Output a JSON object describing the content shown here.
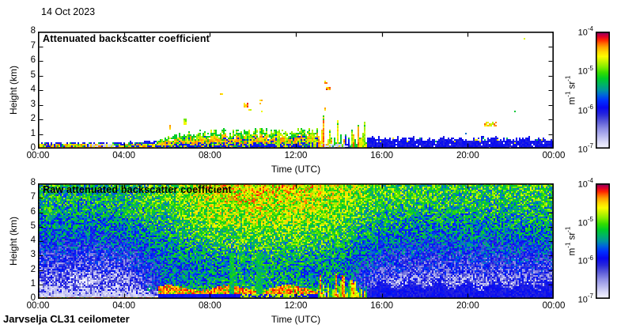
{
  "date_label": "14 Oct 2023",
  "footer": "Jarvselja CL31 ceilometer",
  "axes": {
    "x_label": "Time (UTC)",
    "y_label": "Height (km)",
    "x_ticks": [
      "00:00",
      "04:00",
      "08:00",
      "12:00",
      "16:00",
      "20:00",
      "00:00"
    ],
    "y_ticks": [
      "0",
      "1",
      "2",
      "3",
      "4",
      "5",
      "6",
      "7",
      "8"
    ]
  },
  "colorbar": {
    "ticks": [
      {
        "base": "10",
        "exp": "-4"
      },
      {
        "base": "10",
        "exp": "-5"
      },
      {
        "base": "10",
        "exp": "-6"
      },
      {
        "base": "10",
        "exp": "-7"
      }
    ],
    "unit": {
      "m": "m",
      "m_exp": "-1",
      "sr": " sr",
      "sr_exp": "-1"
    }
  },
  "panels": [
    {
      "title": "Attenuated backscatter coefficient"
    },
    {
      "title": "Raw attenuated backscatter coefficient"
    }
  ],
  "chart_data": {
    "type": "heatmap",
    "x_range_hours": [
      0,
      24
    ],
    "y_range_km": [
      0,
      8
    ],
    "color_scale": {
      "min_label": "10^-7",
      "max_label": "10^-4",
      "log": true,
      "unit": "m-1 sr-1"
    },
    "colormap_stops": [
      [
        0.0,
        "#f6f6ff"
      ],
      [
        0.05,
        "#dcdcf8"
      ],
      [
        0.11,
        "#b4b4ee"
      ],
      [
        0.17,
        "#8c8ce4"
      ],
      [
        0.23,
        "#5a5ad8"
      ],
      [
        0.29,
        "#2828dc"
      ],
      [
        0.35,
        "#0808f0"
      ],
      [
        0.41,
        "#0030ff"
      ],
      [
        0.46,
        "#0068d8"
      ],
      [
        0.5,
        "#0096a0"
      ],
      [
        0.55,
        "#00b464"
      ],
      [
        0.6,
        "#00cc28"
      ],
      [
        0.65,
        "#34dc00"
      ],
      [
        0.7,
        "#84ec00"
      ],
      [
        0.75,
        "#c8f400"
      ],
      [
        0.79,
        "#fcfc00"
      ],
      [
        0.83,
        "#ffd800"
      ],
      [
        0.87,
        "#ffa400"
      ],
      [
        0.9,
        "#ff6c00"
      ],
      [
        0.93,
        "#ff2800"
      ],
      [
        0.96,
        "#e00028"
      ],
      [
        0.985,
        "#a80050"
      ],
      [
        1.0,
        "#5c0058"
      ]
    ],
    "attenuated": {
      "background": "#ffffff",
      "layer_top_profile": [
        [
          0,
          0.38
        ],
        [
          2,
          0.35
        ],
        [
          4,
          0.38
        ],
        [
          5,
          0.42
        ],
        [
          5.5,
          0.55
        ],
        [
          6,
          0.75
        ],
        [
          7,
          1.0
        ],
        [
          8,
          1.05
        ],
        [
          9,
          1.1
        ],
        [
          10,
          1.15
        ],
        [
          11,
          1.2
        ],
        [
          12,
          1.12
        ],
        [
          13,
          1.35
        ],
        [
          14,
          1.6
        ],
        [
          14.7,
          1.7
        ],
        [
          15.2,
          1.0
        ],
        [
          15.6,
          0.65
        ],
        [
          17,
          0.68
        ],
        [
          18,
          0.62
        ],
        [
          19,
          0.66
        ],
        [
          20,
          0.62
        ],
        [
          21,
          0.66
        ],
        [
          22,
          0.62
        ],
        [
          23,
          0.66
        ],
        [
          24,
          0.62
        ]
      ],
      "segments": [
        {
          "t0": 0,
          "t1": 5.5,
          "style": "night"
        },
        {
          "t0": 5.5,
          "t1": 13,
          "style": "day"
        },
        {
          "t0": 13,
          "t1": 15.3,
          "style": "plumes"
        },
        {
          "t0": 15.3,
          "t1": 24,
          "style": "evening"
        }
      ],
      "clear_patches": [
        {
          "t0": 2.3,
          "t1": 3.6,
          "h0": 0.15,
          "h1": 0.3
        },
        {
          "t0": 13.2,
          "t1": 14.6,
          "h0": 0.0,
          "h1": 0.3
        }
      ],
      "aloft_echoes": [
        {
          "t": 6.15,
          "h": 1.5,
          "w": 0.12,
          "dh": 0.3,
          "p": 0.8
        },
        {
          "t": 6.85,
          "h": 1.85,
          "w": 0.1,
          "dh": 0.5,
          "p": 0.75
        },
        {
          "t": 8.55,
          "h": 3.75,
          "w": 0.1,
          "dh": 0.15,
          "p": 0.8
        },
        {
          "t": 9.7,
          "h": 3.0,
          "w": 0.2,
          "dh": 0.35,
          "p": 0.87
        },
        {
          "t": 9.85,
          "h": 2.65,
          "w": 0.12,
          "dh": 0.18,
          "p": 0.8
        },
        {
          "t": 10.4,
          "h": 3.15,
          "w": 0.15,
          "dh": 0.35,
          "p": 0.85
        },
        {
          "t": 10.45,
          "h": 2.55,
          "w": 0.08,
          "dh": 0.12,
          "p": 0.72
        },
        {
          "t": 13.42,
          "h": 4.55,
          "w": 0.15,
          "dh": 0.2,
          "p": 0.86
        },
        {
          "t": 13.5,
          "h": 4.15,
          "w": 0.18,
          "dh": 0.35,
          "p": 0.88
        },
        {
          "t": 13.3,
          "h": 2.7,
          "w": 0.15,
          "dh": 0.3,
          "p": 0.84
        },
        {
          "t": 17.4,
          "h": 6.55,
          "w": 0.08,
          "dh": 0.15,
          "p": 0.77
        },
        {
          "t": 21.05,
          "h": 1.7,
          "w": 0.55,
          "dh": 0.3,
          "p": 0.82
        },
        {
          "t": 19.9,
          "h": 1.05,
          "w": 0.06,
          "dh": 0.1,
          "p": 0.45
        },
        {
          "t": 22.2,
          "h": 2.5,
          "w": 0.06,
          "dh": 0.1,
          "p": 0.56
        },
        {
          "t": 22.6,
          "h": 7.55,
          "w": 0.07,
          "dh": 0.1,
          "p": 0.74
        }
      ]
    },
    "raw": {
      "grid_t_hours": [
        0,
        2,
        4,
        6,
        8,
        10,
        12,
        14,
        16,
        18,
        20,
        22,
        24
      ],
      "grid_h_km": [
        0,
        1,
        2,
        3,
        4,
        5,
        6,
        7,
        8
      ],
      "grid_values": [
        [
          0.8,
          0.8,
          0.78,
          0.55,
          0.55,
          0.6,
          0.58,
          0.55,
          0.3,
          0.3,
          0.3,
          0.3,
          0.3
        ],
        [
          0.1,
          0.08,
          0.1,
          0.45,
          0.5,
          0.55,
          0.52,
          0.5,
          0.2,
          0.18,
          0.18,
          0.18,
          0.22
        ],
        [
          0.26,
          0.24,
          0.26,
          0.42,
          0.48,
          0.52,
          0.5,
          0.48,
          0.3,
          0.27,
          0.27,
          0.28,
          0.3
        ],
        [
          0.32,
          0.31,
          0.32,
          0.46,
          0.53,
          0.56,
          0.55,
          0.52,
          0.38,
          0.35,
          0.35,
          0.35,
          0.38
        ],
        [
          0.41,
          0.4,
          0.41,
          0.51,
          0.59,
          0.63,
          0.62,
          0.58,
          0.45,
          0.42,
          0.42,
          0.43,
          0.45
        ],
        [
          0.48,
          0.47,
          0.48,
          0.56,
          0.66,
          0.69,
          0.68,
          0.63,
          0.52,
          0.5,
          0.5,
          0.5,
          0.52
        ],
        [
          0.54,
          0.52,
          0.54,
          0.6,
          0.71,
          0.74,
          0.73,
          0.68,
          0.58,
          0.55,
          0.55,
          0.56,
          0.57
        ],
        [
          0.57,
          0.55,
          0.57,
          0.63,
          0.75,
          0.78,
          0.76,
          0.72,
          0.62,
          0.6,
          0.59,
          0.6,
          0.6
        ],
        [
          0.6,
          0.58,
          0.6,
          0.65,
          0.78,
          0.8,
          0.79,
          0.74,
          0.65,
          0.62,
          0.61,
          0.62,
          0.62
        ]
      ],
      "noise_spread": 0.34,
      "features": {
        "fog_white": {
          "t0": 0,
          "t1": 5.6,
          "h_top_base": 1.45
        },
        "surface_red_band": {
          "t0": 0,
          "t1": 5.6,
          "h": 0.12
        },
        "day_red_band": {
          "t0": 5.6,
          "t1": 13.0,
          "h0": 0.36,
          "h1": 0.78
        },
        "day_dark_blue": {
          "t0": 5.6,
          "t1": 13.0,
          "h": 0.36
        },
        "yellow_patch": {
          "t0": 9.4,
          "t1": 12.6,
          "h": 0.36
        },
        "green_columns": {
          "times": [
            9.0,
            10.3
          ],
          "h_max": 3.2
        },
        "spike_zone": {
          "t0": 13.0,
          "t1": 15.3,
          "h_max": 1.8
        },
        "evening_dark_blue": {
          "t0": 15.2,
          "t1": 24,
          "h_top": 1.0
        }
      }
    }
  }
}
